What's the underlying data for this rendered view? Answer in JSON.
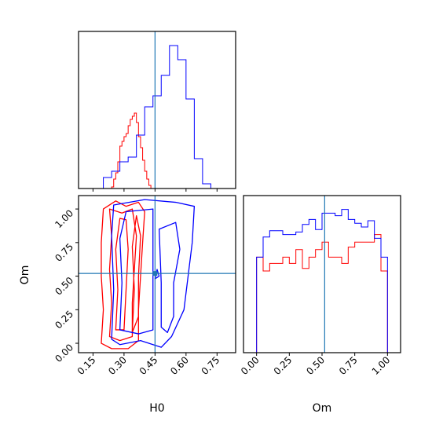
{
  "chart_data": {
    "type": "corner",
    "parameters": [
      "H0",
      "Om"
    ],
    "truths": {
      "H0": 0.45,
      "Om": 0.52
    },
    "truth_color": "#1f77b4",
    "series": [
      {
        "color": "#ff0000"
      },
      {
        "color": "#0000ff"
      }
    ],
    "panels": {
      "H0_hist": {
        "type": "histogram",
        "xlim": [
          0.08,
          0.84
        ],
        "ylim": [
          0,
          1
        ],
        "y_ticks_shown": false,
        "series": [
          {
            "color": "#ff0000",
            "bin_edges": [
              0.24,
              0.25,
              0.26,
              0.27,
              0.28,
              0.29,
              0.3,
              0.31,
              0.32,
              0.33,
              0.34,
              0.35,
              0.36,
              0.37,
              0.38,
              0.39,
              0.4,
              0.41,
              0.42,
              0.43
            ],
            "counts": [
              0.01,
              0.06,
              0.1,
              0.17,
              0.27,
              0.3,
              0.33,
              0.35,
              0.4,
              0.44,
              0.46,
              0.48,
              0.42,
              0.33,
              0.26,
              0.18,
              0.11,
              0.06,
              0.02
            ]
          },
          {
            "color": "#0000ff",
            "bin_edges": [
              0.2,
              0.24,
              0.28,
              0.32,
              0.36,
              0.4,
              0.44,
              0.48,
              0.52,
              0.56,
              0.6,
              0.64,
              0.68,
              0.72,
              0.76
            ],
            "counts": [
              0.07,
              0.11,
              0.17,
              0.2,
              0.34,
              0.52,
              0.59,
              0.72,
              0.91,
              0.82,
              0.57,
              0.19,
              0.03,
              0.0
            ]
          }
        ]
      },
      "Om_hist": {
        "type": "histogram",
        "xlim": [
          -0.1,
          1.1
        ],
        "ylim": [
          0,
          1.25
        ],
        "y_ticks_shown": false,
        "x_ticks": [
          "0.00",
          "0.25",
          "0.50",
          "0.75",
          "1.00"
        ],
        "x_tick_values": [
          0.0,
          0.25,
          0.5,
          0.75,
          1.0
        ],
        "series": [
          {
            "color": "#ff0000",
            "bin_edges": [
              0.0,
              0.05,
              0.1,
              0.15,
              0.2,
              0.25,
              0.3,
              0.35,
              0.4,
              0.45,
              0.5,
              0.55,
              0.6,
              0.65,
              0.7,
              0.75,
              0.8,
              0.85,
              0.9,
              0.95,
              1.0
            ],
            "counts": [
              0.76,
              0.65,
              0.71,
              0.71,
              0.76,
              0.71,
              0.82,
              0.67,
              0.76,
              0.82,
              0.88,
              0.76,
              0.76,
              0.71,
              0.84,
              0.88,
              0.88,
              0.88,
              0.94,
              0.65
            ]
          },
          {
            "color": "#0000ff",
            "bin_edges": [
              0.0,
              0.05,
              0.1,
              0.15,
              0.2,
              0.25,
              0.3,
              0.35,
              0.4,
              0.45,
              0.5,
              0.55,
              0.6,
              0.65,
              0.7,
              0.75,
              0.8,
              0.85,
              0.9,
              0.95,
              1.0
            ],
            "counts": [
              0.76,
              0.92,
              0.97,
              0.97,
              0.94,
              0.94,
              0.96,
              1.02,
              1.06,
              0.98,
              1.11,
              1.11,
              1.09,
              1.14,
              1.06,
              1.03,
              1.0,
              1.05,
              0.91,
              0.76
            ]
          }
        ]
      },
      "scatter": {
        "type": "contour",
        "x": "H0",
        "y": "Om",
        "xlim": [
          0.08,
          0.84
        ],
        "ylim": [
          -0.07,
          1.1
        ],
        "x_ticks": [
          "0.15",
          "0.30",
          "0.45",
          "0.60",
          "0.75"
        ],
        "x_tick_values": [
          0.15,
          0.3,
          0.45,
          0.6,
          0.75
        ],
        "y_ticks": [
          "0.00",
          "0.25",
          "0.50",
          "0.75",
          "1.00"
        ],
        "y_tick_values": [
          0.0,
          0.25,
          0.5,
          0.75,
          1.0
        ],
        "xlabel": "H0",
        "ylabel": "Om",
        "contours": [
          {
            "color": "#ff0000",
            "series_index": 0,
            "paths": [
              [
                [
                  0.19,
                  0.0
                ],
                [
                  0.2,
                  0.25
                ],
                [
                  0.19,
                  0.5
                ],
                [
                  0.19,
                  0.75
                ],
                [
                  0.2,
                  1.0
                ],
                [
                  0.26,
                  1.06
                ],
                [
                  0.31,
                  1.02
                ],
                [
                  0.37,
                  1.05
                ],
                [
                  0.4,
                  0.98
                ],
                [
                  0.39,
                  0.75
                ],
                [
                  0.38,
                  0.5
                ],
                [
                  0.37,
                  0.25
                ],
                [
                  0.37,
                  0.02
                ],
                [
                  0.32,
                  -0.04
                ],
                [
                  0.24,
                  -0.04
                ],
                [
                  0.19,
                  0.0
                ]
              ],
              [
                [
                  0.23,
                  0.05
                ],
                [
                  0.24,
                  0.3
                ],
                [
                  0.23,
                  0.55
                ],
                [
                  0.24,
                  0.8
                ],
                [
                  0.23,
                  1.0
                ],
                [
                  0.29,
                  0.97
                ],
                [
                  0.34,
                  1.0
                ],
                [
                  0.36,
                  0.8
                ],
                [
                  0.35,
                  0.55
                ],
                [
                  0.34,
                  0.3
                ],
                [
                  0.34,
                  0.05
                ],
                [
                  0.28,
                  0.02
                ],
                [
                  0.23,
                  0.05
                ]
              ],
              [
                [
                  0.26,
                  0.1
                ],
                [
                  0.27,
                  0.4
                ],
                [
                  0.26,
                  0.7
                ],
                [
                  0.28,
                  0.93
                ],
                [
                  0.31,
                  0.92
                ],
                [
                  0.32,
                  0.7
                ],
                [
                  0.31,
                  0.4
                ],
                [
                  0.3,
                  0.1
                ],
                [
                  0.26,
                  0.1
                ]
              ],
              [
                [
                  0.34,
                  0.08
                ],
                [
                  0.35,
                  0.4
                ],
                [
                  0.34,
                  0.72
                ],
                [
                  0.36,
                  0.95
                ],
                [
                  0.38,
                  0.8
                ],
                [
                  0.37,
                  0.5
                ],
                [
                  0.37,
                  0.2
                ],
                [
                  0.34,
                  0.08
                ]
              ]
            ]
          },
          {
            "color": "#0000ff",
            "series_index": 1,
            "paths": [
              [
                [
                  0.24,
                  0.03
                ],
                [
                  0.25,
                  0.4
                ],
                [
                  0.24,
                  0.8
                ],
                [
                  0.25,
                  1.03
                ],
                [
                  0.4,
                  1.07
                ],
                [
                  0.55,
                  1.05
                ],
                [
                  0.64,
                  1.02
                ],
                [
                  0.63,
                  0.75
                ],
                [
                  0.61,
                  0.5
                ],
                [
                  0.59,
                  0.25
                ],
                [
                  0.53,
                  0.05
                ],
                [
                  0.48,
                  -0.03
                ],
                [
                  0.38,
                  0.02
                ],
                [
                  0.28,
                  -0.01
                ],
                [
                  0.24,
                  0.03
                ]
              ],
              [
                [
                  0.28,
                  0.1
                ],
                [
                  0.29,
                  0.45
                ],
                [
                  0.28,
                  0.78
                ],
                [
                  0.31,
                  0.98
                ],
                [
                  0.44,
                  1.0
                ],
                [
                  0.44,
                  0.75
                ],
                [
                  0.44,
                  0.45
                ],
                [
                  0.44,
                  0.1
                ],
                [
                  0.37,
                  0.07
                ],
                [
                  0.28,
                  0.1
                ]
              ],
              [
                [
                  0.48,
                  0.12
                ],
                [
                  0.48,
                  0.45
                ],
                [
                  0.47,
                  0.85
                ],
                [
                  0.55,
                  0.9
                ],
                [
                  0.57,
                  0.7
                ],
                [
                  0.54,
                  0.45
                ],
                [
                  0.54,
                  0.2
                ],
                [
                  0.51,
                  0.08
                ],
                [
                  0.48,
                  0.12
                ]
              ],
              [
                [
                  0.45,
                  0.48
                ],
                [
                  0.46,
                  0.55
                ],
                [
                  0.47,
                  0.5
                ],
                [
                  0.45,
                  0.48
                ]
              ]
            ]
          }
        ]
      }
    }
  }
}
